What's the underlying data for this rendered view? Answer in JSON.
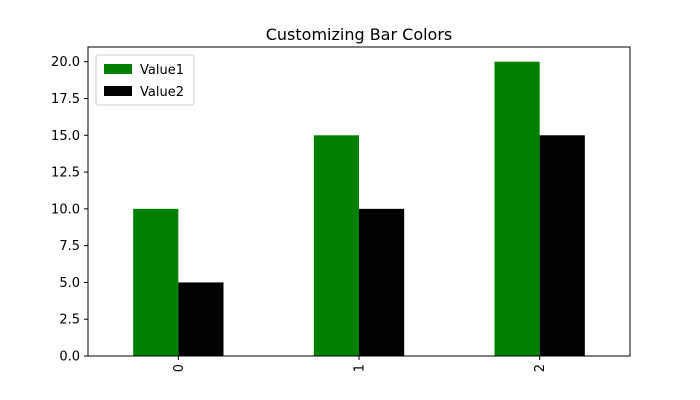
{
  "chart_data": {
    "type": "bar",
    "title": "Customizing Bar Colors",
    "xlabel": "",
    "ylabel": "",
    "categories": [
      "0",
      "1",
      "2"
    ],
    "series": [
      {
        "name": "Value1",
        "values": [
          10,
          15,
          20
        ],
        "color": "#008000"
      },
      {
        "name": "Value2",
        "values": [
          5,
          10,
          15
        ],
        "color": "#000000"
      }
    ],
    "ylim": [
      0,
      21
    ],
    "y_ticks": [
      "0.0",
      "2.5",
      "5.0",
      "7.5",
      "10.0",
      "12.5",
      "15.0",
      "17.5",
      "20.0"
    ],
    "x_tick_rotation": "vertical",
    "grid": false,
    "legend_position": "upper-left"
  }
}
